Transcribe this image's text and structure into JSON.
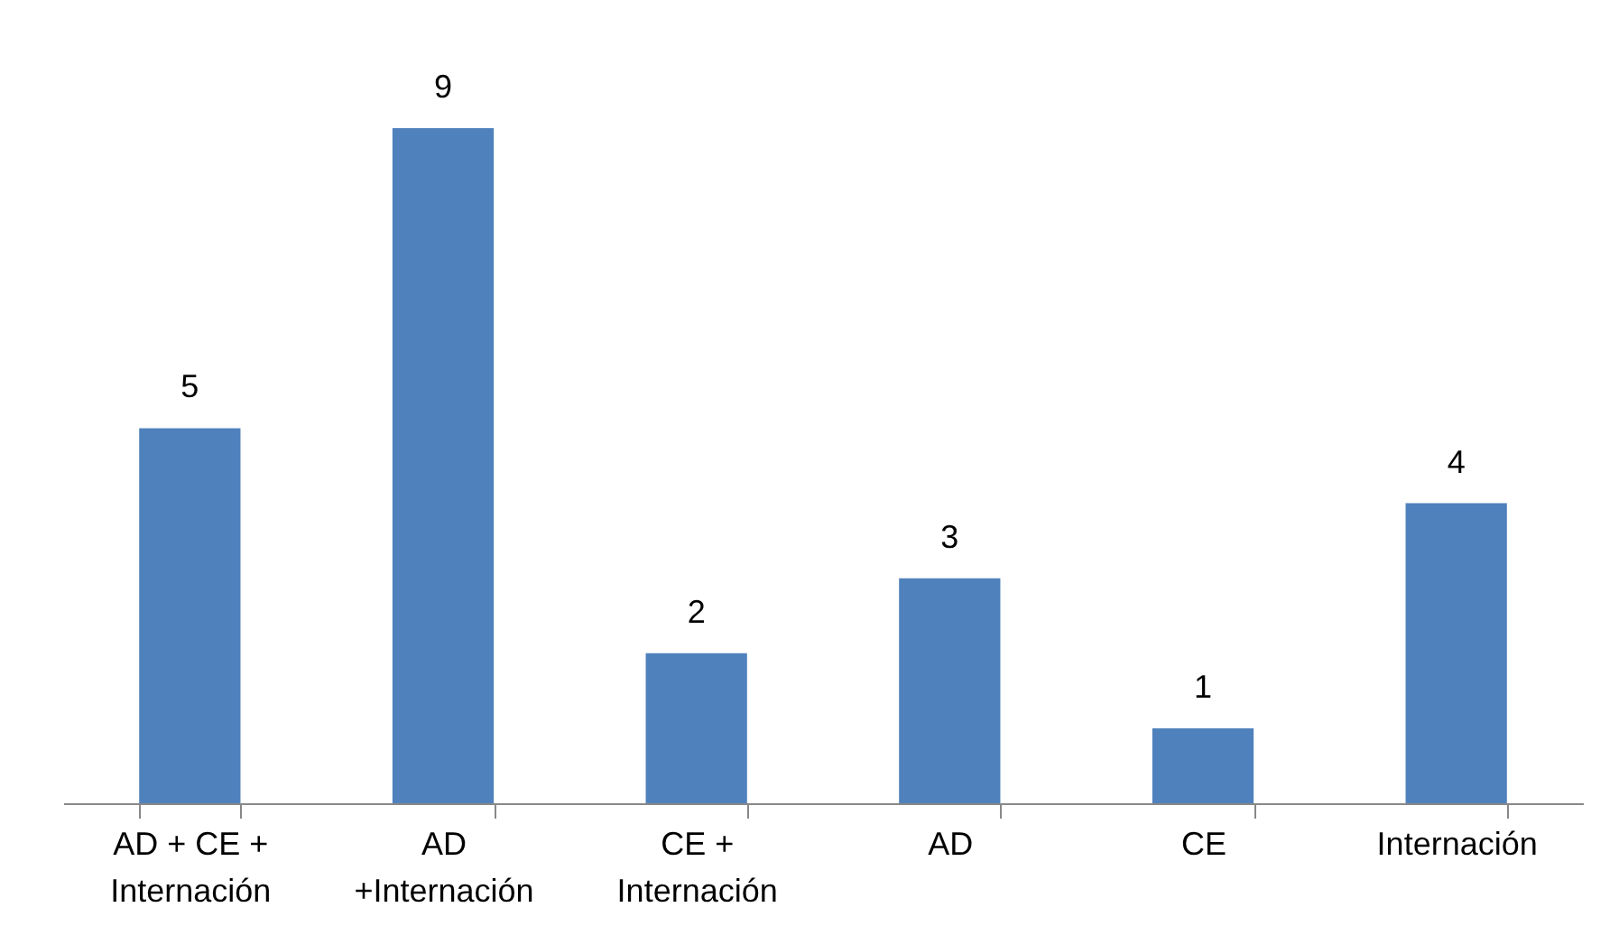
{
  "chart_data": {
    "type": "bar",
    "categories": [
      "AD +  CE +\nInternación",
      "AD\n+Internación",
      "CE +\nInternación",
      "AD",
      "CE",
      "Internación"
    ],
    "values": [
      5,
      9,
      2,
      3,
      1,
      4
    ],
    "color": "#4f81bd",
    "data_labels": true,
    "tick_labels": "x",
    "grid": false
  }
}
